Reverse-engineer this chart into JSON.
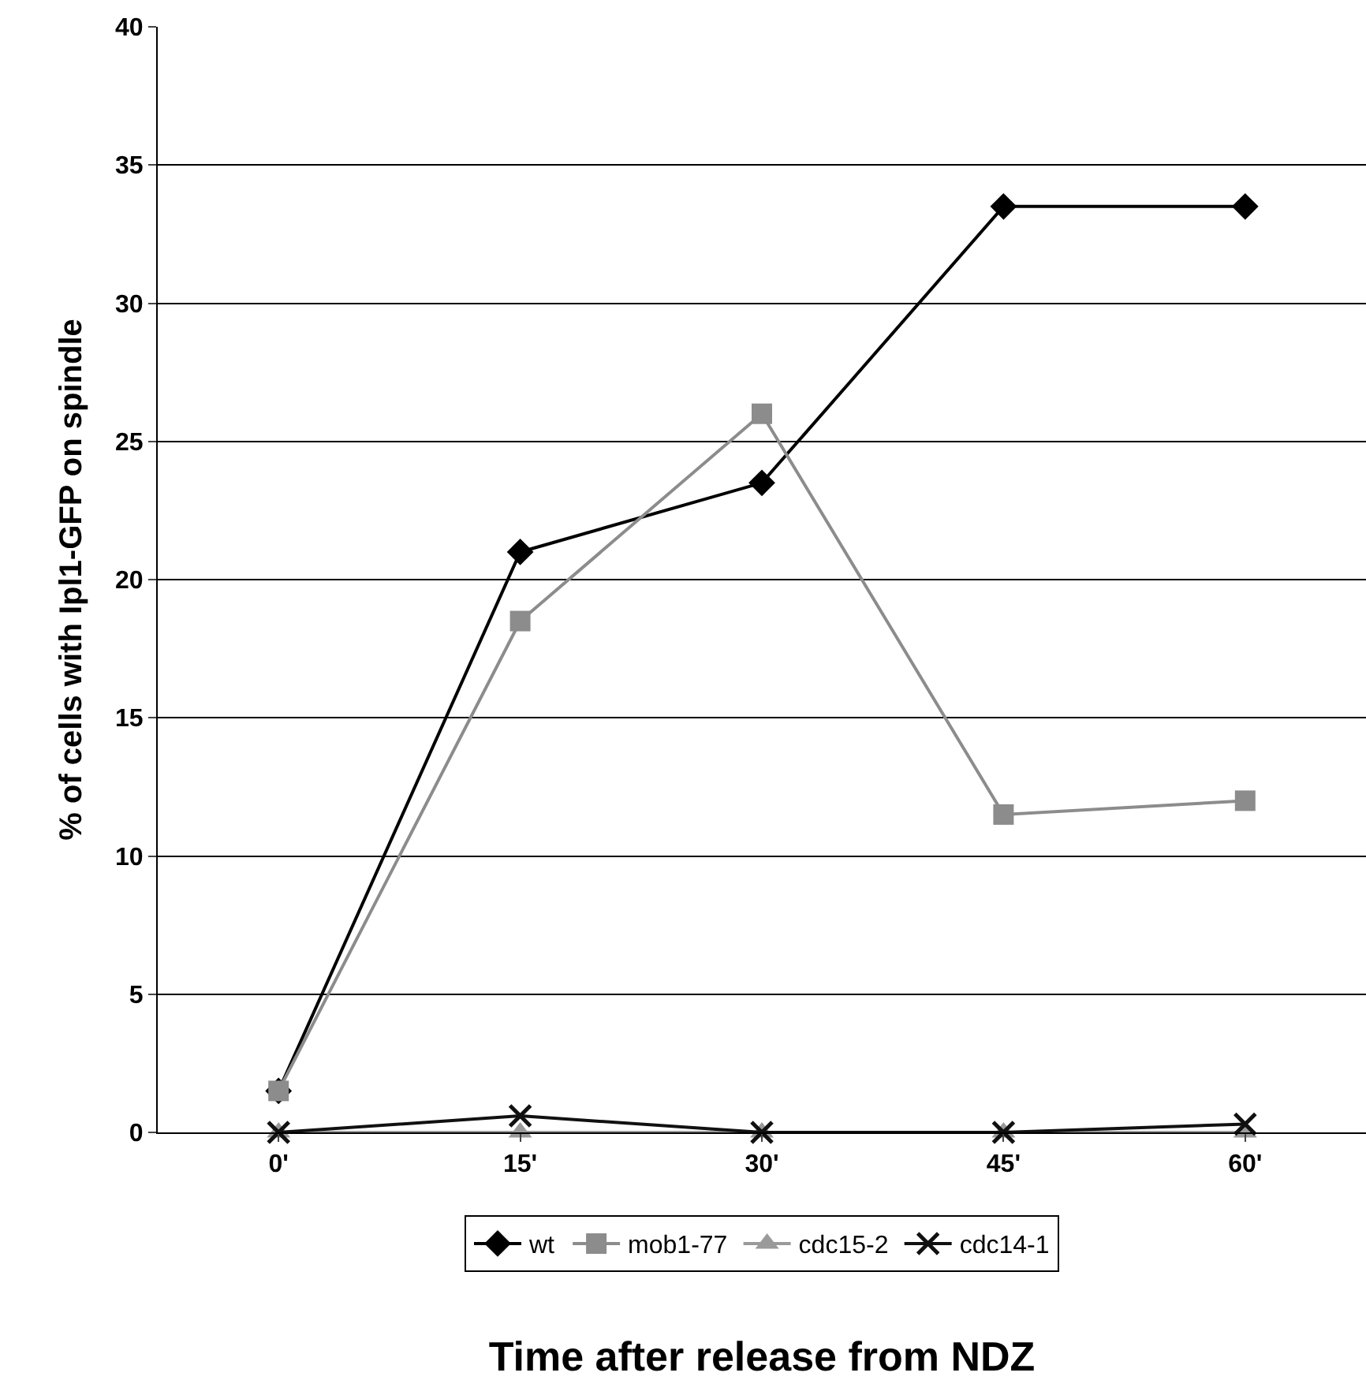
{
  "chart_data": {
    "type": "line",
    "xlabel": "Time after release from NDZ",
    "ylabel": "% of cells with Ipl1-GFP on spindle",
    "categories": [
      "0'",
      "15'",
      "30'",
      "45'",
      "60'"
    ],
    "series": [
      {
        "name": "wt",
        "color": "#000000",
        "marker": "diamond",
        "values": [
          1.5,
          21,
          23.5,
          33.5,
          33.5
        ]
      },
      {
        "name": "mob1-77",
        "color": "#8c8c8c",
        "marker": "square",
        "values": [
          1.5,
          18.5,
          26,
          11.5,
          12
        ]
      },
      {
        "name": "cdc15-2",
        "color": "#9a9a9a",
        "marker": "triangle",
        "values": [
          0,
          0,
          0,
          0,
          0
        ]
      },
      {
        "name": "cdc14-1",
        "color": "#111111",
        "marker": "cross",
        "values": [
          0,
          0.6,
          0,
          0,
          0.3
        ]
      }
    ],
    "ylim": [
      0,
      40
    ],
    "yticks": [
      0,
      5,
      10,
      15,
      20,
      25,
      30,
      35,
      40
    ],
    "grid": "y",
    "legend": "bottom",
    "line_style": "solid"
  }
}
